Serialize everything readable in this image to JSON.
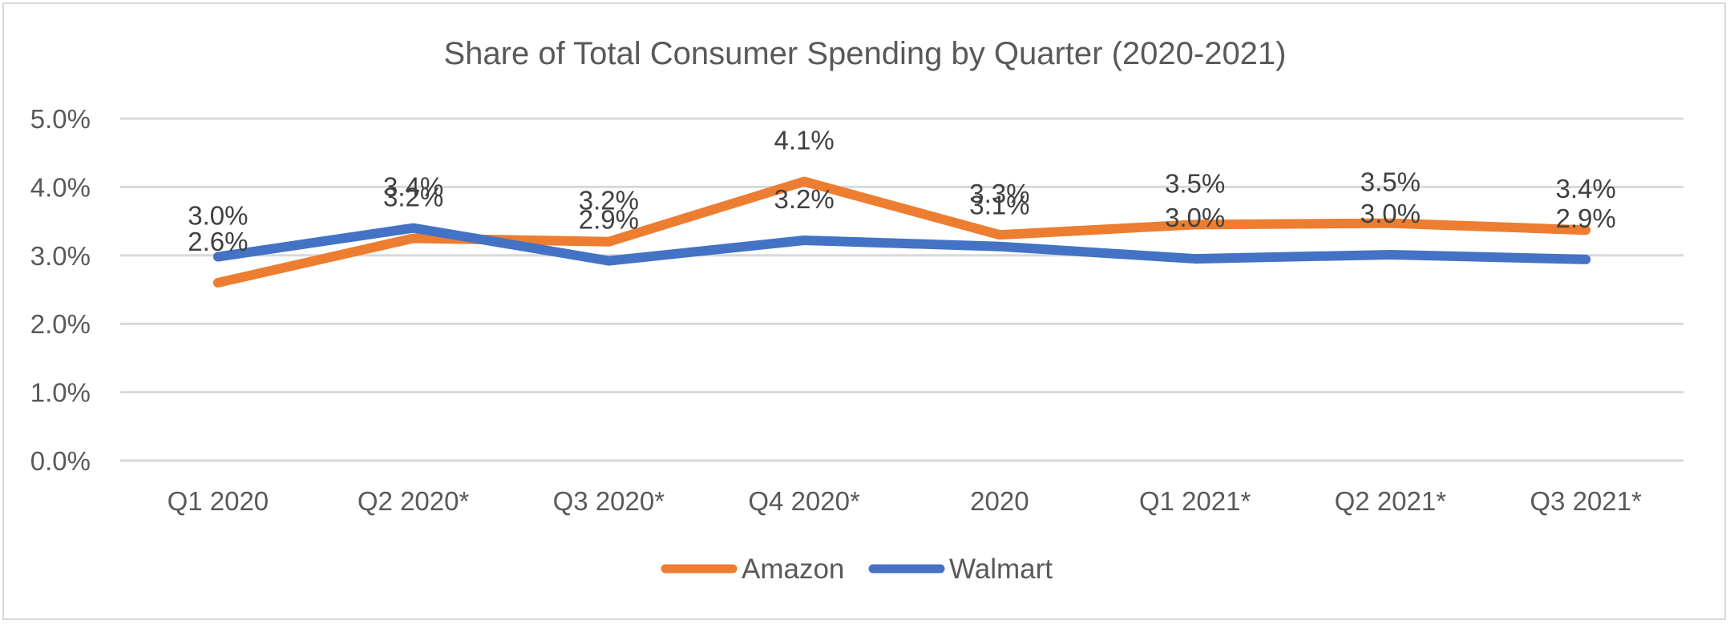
{
  "chart_data": {
    "type": "line",
    "title": "Share of Total Consumer Spending by Quarter (2020-2021)",
    "xlabel": "",
    "ylabel": "",
    "categories": [
      "Q1 2020",
      "Q2 2020*",
      "Q3 2020*",
      "Q4 2020*",
      "2020",
      "Q1 2021*",
      "Q2 2021*",
      "Q3 2021*"
    ],
    "ylim": [
      0,
      5.0
    ],
    "yticks": [
      0,
      1,
      2,
      3,
      4,
      5
    ],
    "ytick_labels": [
      "0.0%",
      "1.0%",
      "2.0%",
      "3.0%",
      "4.0%",
      "5.0%"
    ],
    "grid": true,
    "legend_position": "bottom",
    "series": [
      {
        "name": "Amazon",
        "color": "#ED7D31",
        "values": [
          2.6,
          3.25,
          3.2,
          4.08,
          3.3,
          3.45,
          3.47,
          3.37
        ],
        "labels": [
          "2.6%",
          "3.2%",
          "3.2%",
          "4.1%",
          "3.3%",
          "3.5%",
          "3.5%",
          "3.4%"
        ]
      },
      {
        "name": "Walmart",
        "color": "#4472C4",
        "values": [
          2.98,
          3.4,
          2.92,
          3.22,
          3.13,
          2.95,
          3.01,
          2.94
        ],
        "labels": [
          "3.0%",
          "3.4%",
          "2.9%",
          "3.2%",
          "3.1%",
          "3.0%",
          "3.0%",
          "2.9%"
        ]
      }
    ]
  }
}
